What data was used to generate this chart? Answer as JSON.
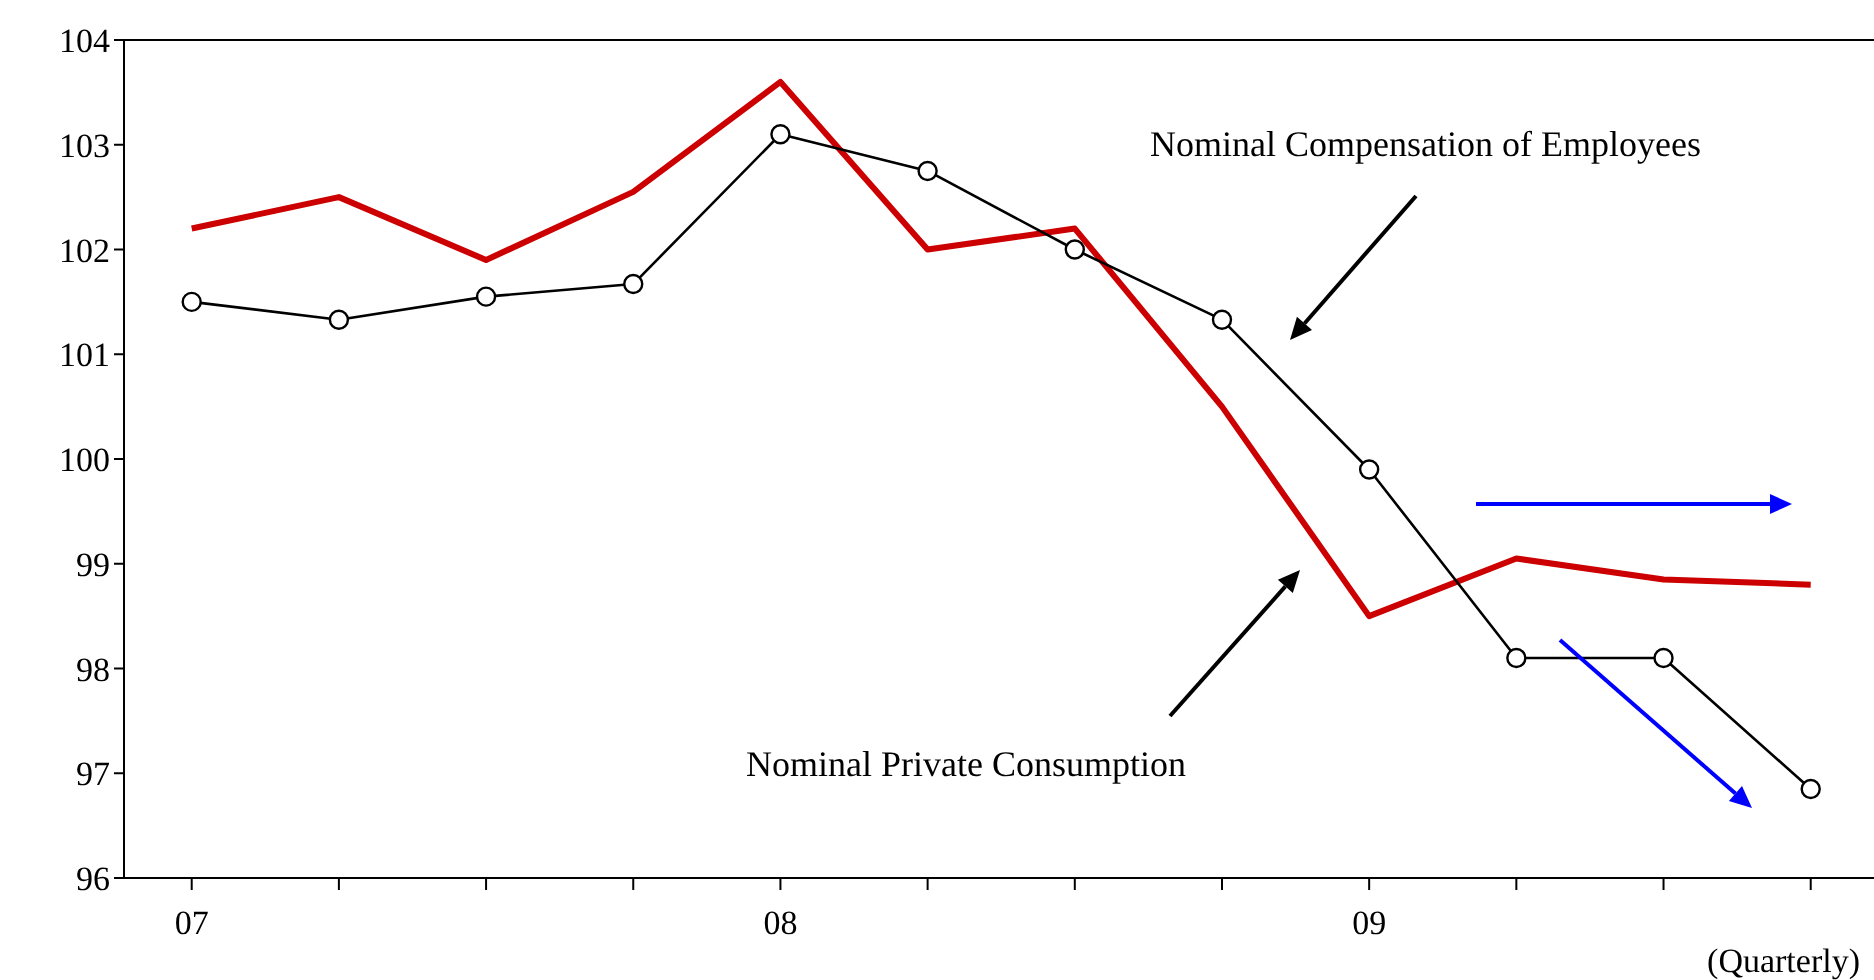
{
  "chart_data": {
    "type": "line",
    "xlabel": "(Quarterly)",
    "categories": [
      "07",
      null,
      null,
      null,
      "08",
      null,
      null,
      null,
      "09",
      null,
      null,
      null
    ],
    "series": [
      {
        "name": "Nominal Private Consumption",
        "color": "#cc0000",
        "marker": "none",
        "values": [
          102.2,
          102.5,
          101.9,
          102.55,
          103.6,
          102.0,
          102.2,
          100.5,
          98.5,
          99.05,
          98.85,
          98.8
        ]
      },
      {
        "name": "Nominal Compensation of Employees",
        "color": "#000000",
        "marker": "circle",
        "values": [
          101.5,
          101.33,
          101.55,
          101.67,
          103.1,
          102.75,
          102.0,
          101.33,
          99.9,
          98.1,
          98.1,
          96.85
        ]
      }
    ],
    "ylim": [
      96,
      104
    ],
    "yticks": [
      96,
      97,
      98,
      99,
      100,
      101,
      102,
      103,
      104
    ]
  }
}
